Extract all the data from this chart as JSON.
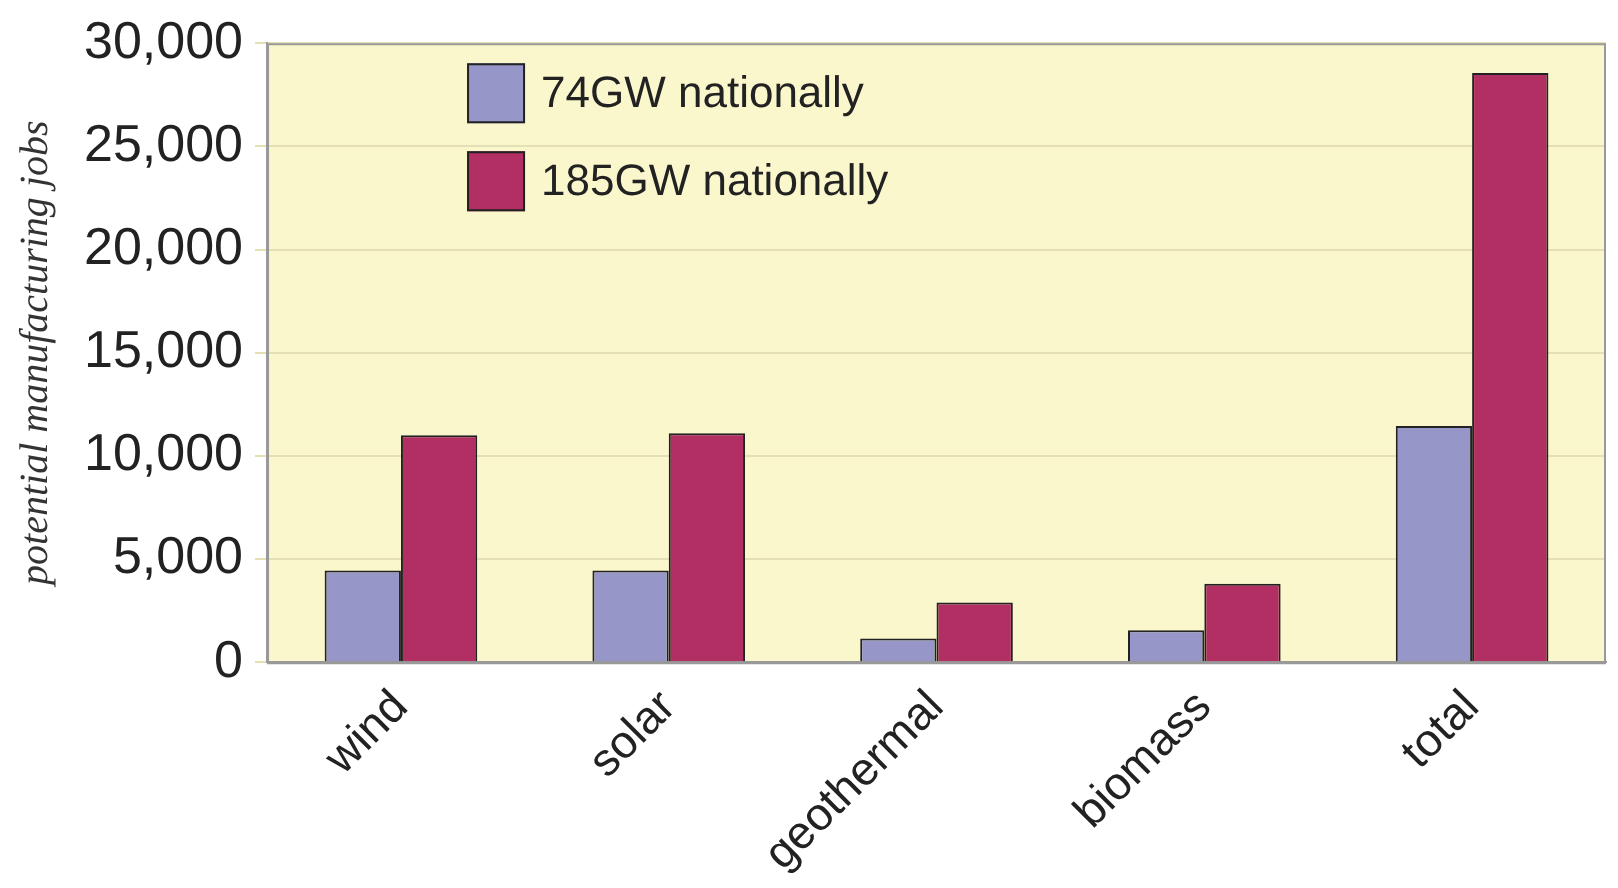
{
  "chart_data": {
    "type": "bar",
    "ylabel": "potential manufacturing jobs",
    "categories": [
      "wind",
      "solar",
      "geothermal",
      "biomass",
      "total"
    ],
    "series": [
      {
        "name": "74GW nationally",
        "color": "#9696c8",
        "values": [
          4450,
          4450,
          1150,
          1550,
          11450
        ]
      },
      {
        "name": "185GW nationally",
        "color": "#b12f62",
        "values": [
          11000,
          11100,
          2900,
          3800,
          28550
        ]
      }
    ],
    "ylim": [
      0,
      30000
    ],
    "yticks": [
      {
        "value": 0,
        "label": "0"
      },
      {
        "value": 5000,
        "label": "5,000"
      },
      {
        "value": 10000,
        "label": "10,000"
      },
      {
        "value": 15000,
        "label": "15,000"
      },
      {
        "value": 20000,
        "label": "20,000"
      },
      {
        "value": 25000,
        "label": "25,000"
      },
      {
        "value": 30000,
        "label": "30,000"
      }
    ],
    "grid": "y",
    "legend": "top left"
  }
}
